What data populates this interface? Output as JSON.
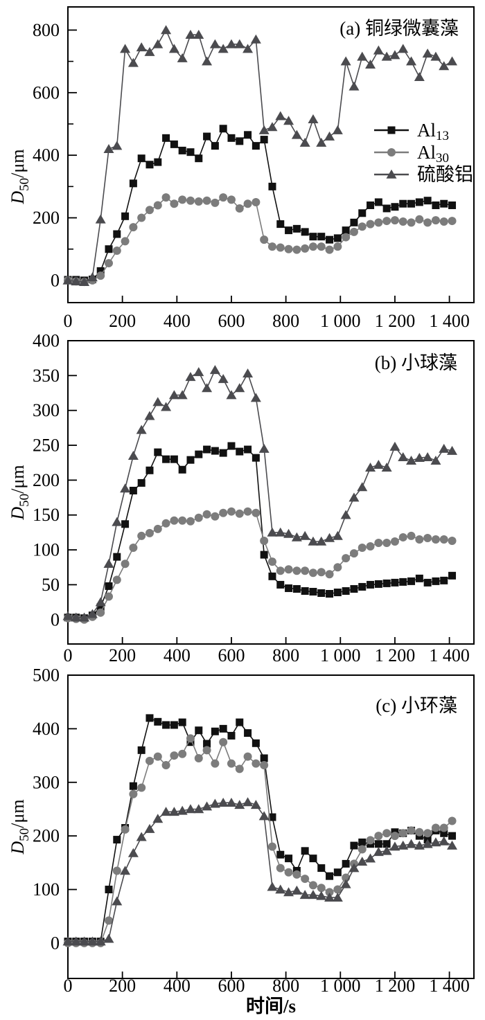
{
  "figure": {
    "background": "#ffffff",
    "x_axis_title": "时间/s",
    "y_axis_title": {
      "var": "D",
      "sub": "50",
      "rest": "/μm"
    }
  },
  "chart_data": [
    {
      "id": "a",
      "type": "line",
      "title": "(a) 铜绿微囊藻",
      "xlabel": "",
      "ylabel": {
        "var": "D",
        "sub": "50",
        "rest": "/μm"
      },
      "xlim": [
        0,
        1490
      ],
      "ylim": [
        -71,
        874
      ],
      "grid": false,
      "x_ticks": {
        "values": [
          0,
          200,
          400,
          600,
          800,
          1000,
          1200,
          1400
        ],
        "labels": [
          "0",
          "200",
          "400",
          "600",
          "800",
          "1 000",
          "1 200",
          "1 400"
        ]
      },
      "y_ticks": {
        "values": [
          0,
          200,
          400,
          600,
          800
        ],
        "labels": [
          "0",
          "200",
          "400",
          "600",
          "800"
        ],
        "minor": [
          100,
          300,
          500,
          700
        ]
      },
      "legend": {
        "show": true,
        "position": "right-middle",
        "items": [
          {
            "label": "Al",
            "label_sub": "13"
          },
          {
            "label": "Al",
            "label_sub": "30"
          },
          {
            "label": "硫酸铝",
            "label_sub": ""
          }
        ]
      },
      "x": [
        0,
        30,
        60,
        90,
        120,
        150,
        180,
        210,
        240,
        270,
        300,
        330,
        360,
        390,
        420,
        450,
        480,
        510,
        540,
        570,
        600,
        630,
        660,
        690,
        720,
        750,
        780,
        810,
        840,
        870,
        900,
        930,
        960,
        990,
        1020,
        1050,
        1080,
        1110,
        1140,
        1170,
        1200,
        1230,
        1260,
        1290,
        1320,
        1350,
        1380,
        1410
      ],
      "series": [
        {
          "name": "Al13",
          "marker": "square",
          "color": "#111111",
          "values": [
            2,
            2,
            0,
            3,
            30,
            100,
            148,
            205,
            310,
            390,
            370,
            378,
            455,
            435,
            415,
            410,
            390,
            460,
            430,
            485,
            455,
            445,
            465,
            430,
            450,
            300,
            180,
            160,
            165,
            155,
            140,
            140,
            130,
            135,
            160,
            185,
            215,
            240,
            250,
            230,
            235,
            245,
            245,
            250,
            255,
            240,
            245,
            240
          ]
        },
        {
          "name": "Al30",
          "marker": "circle",
          "color": "#7c7c7c",
          "values": [
            0,
            -3,
            -5,
            0,
            15,
            55,
            95,
            125,
            170,
            200,
            225,
            240,
            265,
            245,
            258,
            255,
            252,
            255,
            248,
            265,
            258,
            230,
            245,
            250,
            130,
            108,
            105,
            100,
            98,
            102,
            108,
            108,
            98,
            108,
            138,
            155,
            172,
            180,
            185,
            190,
            192,
            188,
            185,
            195,
            185,
            192,
            188,
            190
          ]
        },
        {
          "name": "硫酸铝",
          "marker": "triangle",
          "color": "#4b4b4f",
          "values": [
            0,
            -3,
            -5,
            10,
            195,
            420,
            430,
            740,
            695,
            745,
            730,
            755,
            800,
            740,
            710,
            785,
            785,
            700,
            755,
            740,
            755,
            755,
            740,
            770,
            480,
            490,
            525,
            510,
            465,
            440,
            515,
            440,
            460,
            480,
            700,
            620,
            715,
            690,
            735,
            715,
            720,
            740,
            700,
            650,
            725,
            715,
            685,
            700
          ]
        }
      ]
    },
    {
      "id": "b",
      "type": "line",
      "title": "(b) 小球藻",
      "xlabel": "",
      "ylabel": {
        "var": "D",
        "sub": "50",
        "rest": "/μm"
      },
      "xlim": [
        0,
        1490
      ],
      "ylim": [
        -35,
        400
      ],
      "grid": false,
      "x_ticks": {
        "values": [
          0,
          200,
          400,
          600,
          800,
          1000,
          1200,
          1400
        ],
        "labels": [
          "0",
          "200",
          "400",
          "600",
          "800",
          "1 000",
          "1 200",
          "1 400"
        ]
      },
      "y_ticks": {
        "values": [
          0,
          50,
          100,
          150,
          200,
          250,
          300,
          350,
          400
        ],
        "labels": [
          "0",
          "50",
          "100",
          "150",
          "200",
          "250",
          "300",
          "350",
          "400"
        ],
        "minor": []
      },
      "legend": {
        "show": false,
        "position": "",
        "items": []
      },
      "x": [
        0,
        30,
        60,
        90,
        120,
        150,
        180,
        210,
        240,
        270,
        300,
        330,
        360,
        390,
        420,
        450,
        480,
        510,
        540,
        570,
        600,
        630,
        660,
        690,
        720,
        750,
        780,
        810,
        840,
        870,
        900,
        930,
        960,
        990,
        1020,
        1050,
        1080,
        1110,
        1140,
        1170,
        1200,
        1230,
        1260,
        1290,
        1320,
        1350,
        1380,
        1410
      ],
      "series": [
        {
          "name": "Al13",
          "marker": "square",
          "color": "#111111",
          "values": [
            3,
            3,
            2,
            6,
            18,
            48,
            90,
            137,
            185,
            196,
            214,
            240,
            230,
            230,
            215,
            229,
            237,
            244,
            242,
            239,
            249,
            241,
            244,
            232,
            93,
            62,
            50,
            45,
            44,
            41,
            40,
            38,
            37,
            39,
            41,
            44,
            47,
            50,
            51,
            52,
            53,
            54,
            55,
            59,
            53,
            55,
            56,
            63
          ]
        },
        {
          "name": "Al30",
          "marker": "circle",
          "color": "#7c7c7c",
          "values": [
            2,
            1,
            0,
            4,
            10,
            33,
            57,
            80,
            103,
            120,
            124,
            130,
            138,
            142,
            142,
            141,
            146,
            151,
            148,
            153,
            155,
            152,
            155,
            153,
            113,
            83,
            70,
            72,
            70,
            70,
            67,
            68,
            65,
            75,
            88,
            95,
            103,
            105,
            110,
            110,
            112,
            118,
            120,
            115,
            117,
            115,
            115,
            113
          ]
        },
        {
          "name": "硫酸铝",
          "marker": "triangle",
          "color": "#4b4b4f",
          "values": [
            5,
            3,
            3,
            8,
            25,
            80,
            140,
            188,
            235,
            272,
            292,
            312,
            305,
            322,
            322,
            348,
            355,
            332,
            358,
            345,
            322,
            332,
            353,
            318,
            245,
            125,
            125,
            123,
            118,
            120,
            112,
            112,
            117,
            120,
            150,
            175,
            190,
            218,
            222,
            218,
            248,
            233,
            228,
            232,
            233,
            228,
            245,
            242
          ]
        }
      ]
    },
    {
      "id": "c",
      "type": "line",
      "title": "(c) 小环藻",
      "xlabel": "时间/s",
      "ylabel": {
        "var": "D",
        "sub": "50",
        "rest": "/μm"
      },
      "xlim": [
        0,
        1490
      ],
      "ylim": [
        -66,
        500
      ],
      "grid": false,
      "x_ticks": {
        "values": [
          0,
          200,
          400,
          600,
          800,
          1000,
          1200,
          1400
        ],
        "labels": [
          "0",
          "200",
          "400",
          "600",
          "800",
          "1 000",
          "1 200",
          "1 400"
        ]
      },
      "y_ticks": {
        "values": [
          0,
          100,
          200,
          300,
          400,
          500
        ],
        "labels": [
          "0",
          "100",
          "200",
          "300",
          "400",
          "500"
        ],
        "minor": []
      },
      "legend": {
        "show": false,
        "position": "",
        "items": []
      },
      "x": [
        0,
        30,
        60,
        90,
        120,
        150,
        180,
        210,
        240,
        270,
        300,
        330,
        360,
        390,
        420,
        450,
        480,
        510,
        540,
        570,
        600,
        630,
        660,
        690,
        720,
        750,
        780,
        810,
        840,
        870,
        900,
        930,
        960,
        990,
        1020,
        1050,
        1080,
        1110,
        1140,
        1170,
        1200,
        1230,
        1260,
        1290,
        1320,
        1350,
        1380,
        1410
      ],
      "series": [
        {
          "name": "Al13",
          "marker": "square",
          "color": "#111111",
          "values": [
            3,
            3,
            3,
            3,
            3,
            100,
            193,
            215,
            293,
            360,
            420,
            413,
            407,
            407,
            412,
            375,
            397,
            372,
            395,
            400,
            387,
            412,
            392,
            373,
            345,
            235,
            165,
            158,
            135,
            172,
            158,
            140,
            125,
            132,
            148,
            182,
            188,
            185,
            185,
            185,
            207,
            205,
            210,
            200,
            193,
            210,
            205,
            200
          ]
        },
        {
          "name": "Al30",
          "marker": "circle",
          "color": "#7c7c7c",
          "values": [
            0,
            0,
            0,
            0,
            0,
            42,
            135,
            212,
            278,
            290,
            340,
            348,
            332,
            350,
            353,
            382,
            345,
            360,
            335,
            375,
            335,
            325,
            348,
            335,
            332,
            180,
            140,
            132,
            128,
            120,
            108,
            103,
            95,
            100,
            122,
            148,
            175,
            192,
            200,
            205,
            200,
            205,
            210,
            207,
            205,
            215,
            215,
            228
          ]
        },
        {
          "name": "硫酸铝",
          "marker": "triangle",
          "color": "#4b4b4f",
          "values": [
            3,
            3,
            3,
            3,
            3,
            8,
            78,
            135,
            168,
            198,
            213,
            232,
            245,
            245,
            247,
            250,
            250,
            255,
            260,
            262,
            262,
            258,
            263,
            258,
            237,
            105,
            100,
            95,
            98,
            90,
            90,
            88,
            85,
            85,
            110,
            140,
            152,
            158,
            170,
            172,
            180,
            182,
            185,
            182,
            185,
            188,
            190,
            182
          ]
        }
      ]
    }
  ]
}
